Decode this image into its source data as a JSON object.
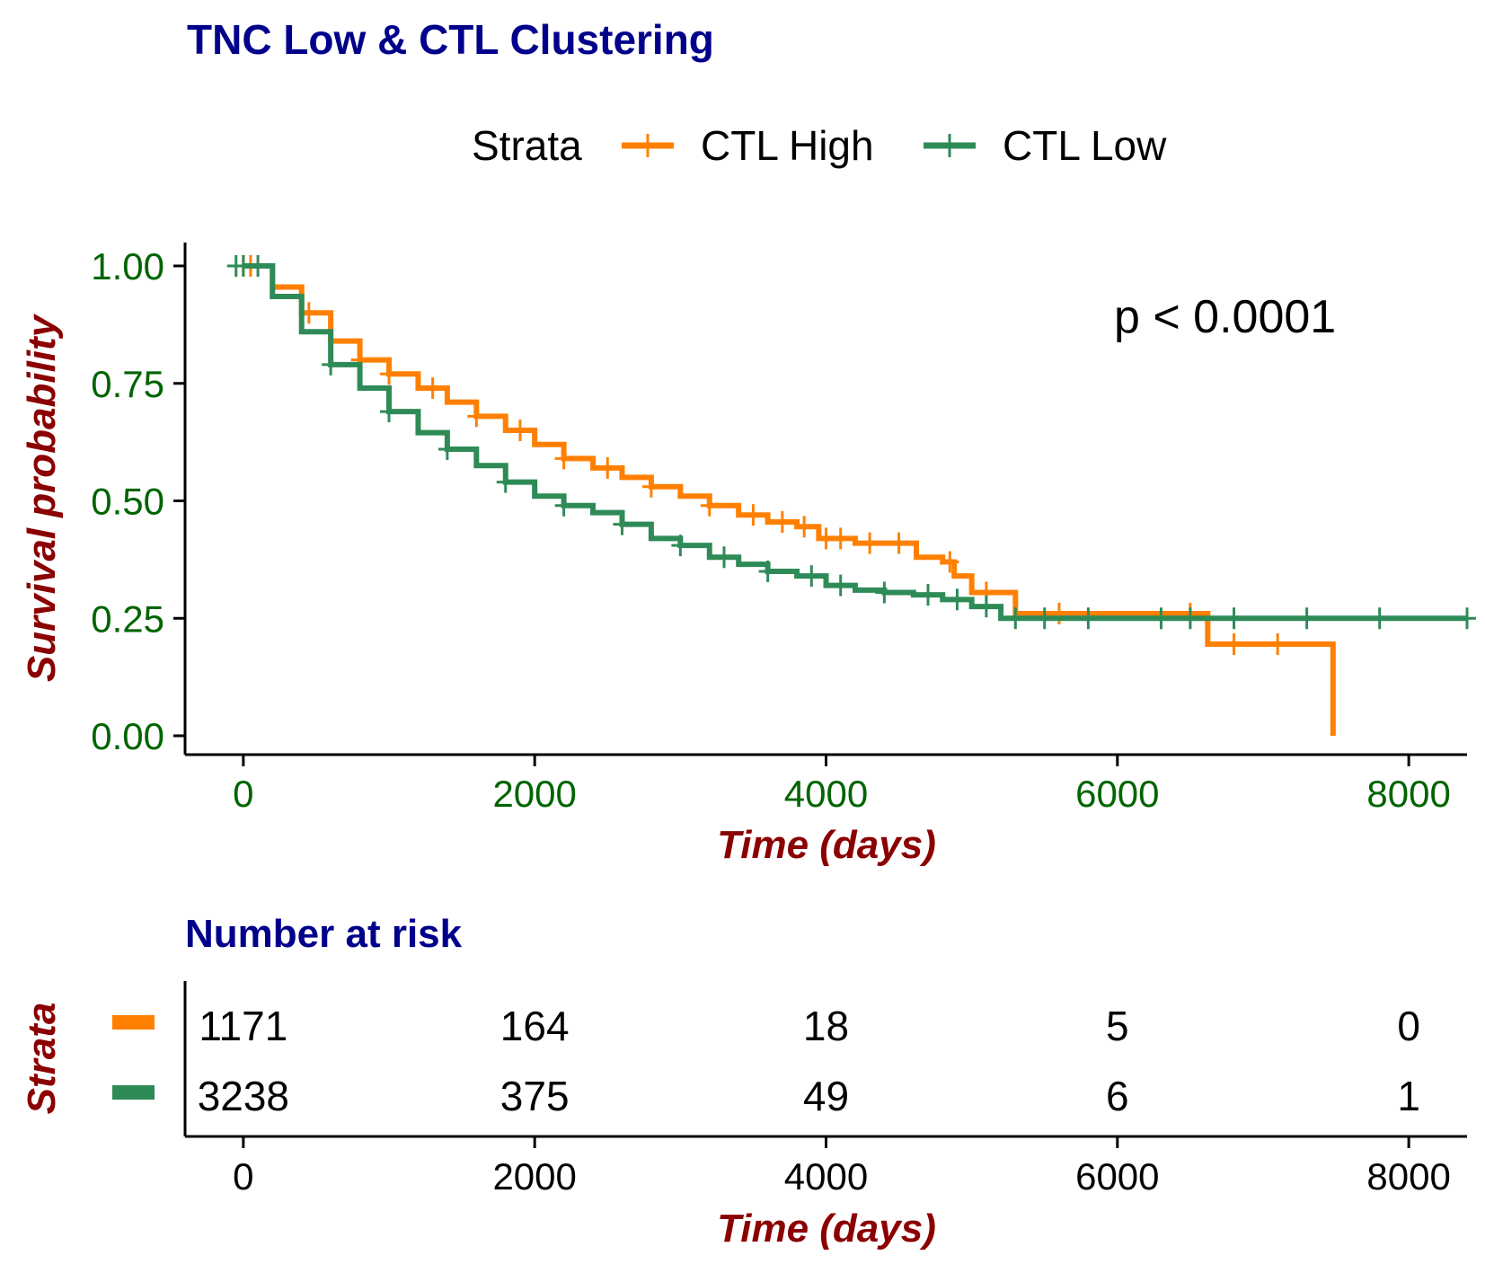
{
  "title": "TNC Low & CTL Clustering",
  "legend": {
    "title": "Strata",
    "items": [
      "CTL High",
      "CTL Low"
    ]
  },
  "pvalue": "p < 0.0001",
  "colors": {
    "title": "#00008B",
    "axis_label": "#8B0000",
    "tick_main": "#006400",
    "ctl_high": "#FF8000",
    "ctl_low": "#2E8B57"
  },
  "chart_data": [
    {
      "type": "line",
      "title": "TNC Low & CTL Clustering",
      "xlabel": "Time (days)",
      "ylabel": "Survival probability",
      "xlim": [
        -400,
        8400
      ],
      "ylim": [
        0,
        1
      ],
      "x_ticks": [
        "0",
        "2000",
        "4000",
        "6000",
        "8000"
      ],
      "y_ticks": [
        "0.00",
        "0.25",
        "0.50",
        "0.75",
        "1.00"
      ],
      "grid": false,
      "legend_position": "top",
      "annotation": "p < 0.0001",
      "series": [
        {
          "name": "CTL High",
          "color": "#FF8000",
          "x": [
            0,
            200,
            400,
            600,
            800,
            1000,
            1200,
            1400,
            1600,
            1800,
            2000,
            2200,
            2400,
            2600,
            2800,
            3000,
            3200,
            3400,
            3600,
            3800,
            3950,
            4200,
            4600,
            4620,
            4800,
            4880,
            5000,
            5300,
            5600,
            6000,
            6200,
            6400,
            6600,
            6620,
            7000,
            7470,
            7480
          ],
          "y": [
            1.0,
            0.955,
            0.9,
            0.84,
            0.8,
            0.77,
            0.74,
            0.71,
            0.68,
            0.65,
            0.62,
            0.59,
            0.57,
            0.55,
            0.53,
            0.51,
            0.49,
            0.47,
            0.455,
            0.445,
            0.42,
            0.41,
            0.41,
            0.38,
            0.37,
            0.34,
            0.305,
            0.26,
            0.26,
            0.26,
            0.26,
            0.26,
            0.26,
            0.195,
            0.195,
            0.195,
            0.0
          ],
          "censor_x": [
            0,
            50,
            450,
            800,
            1000,
            1300,
            1600,
            1900,
            2200,
            2500,
            2800,
            3200,
            3500,
            3700,
            3850,
            4000,
            4100,
            4300,
            4500,
            4850,
            5100,
            5600,
            6500,
            6800,
            7100
          ]
        },
        {
          "name": "CTL Low",
          "color": "#2E8B57",
          "x": [
            0,
            200,
            400,
            600,
            800,
            1000,
            1200,
            1400,
            1600,
            1800,
            2000,
            2200,
            2400,
            2600,
            2800,
            3000,
            3200,
            3400,
            3600,
            3800,
            4000,
            4200,
            4400,
            4600,
            4800,
            5000,
            5200,
            5400,
            6000,
            7000,
            8000,
            8400
          ],
          "y": [
            1.0,
            0.935,
            0.86,
            0.79,
            0.74,
            0.69,
            0.645,
            0.61,
            0.575,
            0.54,
            0.51,
            0.49,
            0.475,
            0.45,
            0.42,
            0.405,
            0.38,
            0.365,
            0.35,
            0.34,
            0.32,
            0.31,
            0.305,
            0.3,
            0.29,
            0.275,
            0.25,
            0.25,
            0.25,
            0.25,
            0.25,
            0.25
          ],
          "censor_x": [
            -50,
            0,
            100,
            600,
            1000,
            1400,
            1800,
            2200,
            2600,
            3000,
            3300,
            3600,
            3900,
            4100,
            4400,
            4700,
            4900,
            5100,
            5300,
            5500,
            5800,
            6300,
            6500,
            6800,
            7300,
            7800,
            8400
          ]
        }
      ]
    },
    {
      "type": "table",
      "title": "Number at risk",
      "xlabel": "Time (days)",
      "ylabel": "Strata",
      "xlim": [
        -400,
        8400
      ],
      "x_ticks": [
        "0",
        "2000",
        "4000",
        "6000",
        "8000"
      ],
      "rows": [
        {
          "series": "CTL High",
          "color": "#FF8000",
          "times": [
            0,
            2000,
            4000,
            6000,
            8000
          ],
          "values": [
            "1171",
            "164",
            "18",
            "5",
            "0"
          ]
        },
        {
          "series": "CTL Low",
          "color": "#2E8B57",
          "times": [
            0,
            2000,
            4000,
            6000,
            8000
          ],
          "values": [
            "3238",
            "375",
            "49",
            "6",
            "1"
          ]
        }
      ]
    }
  ]
}
